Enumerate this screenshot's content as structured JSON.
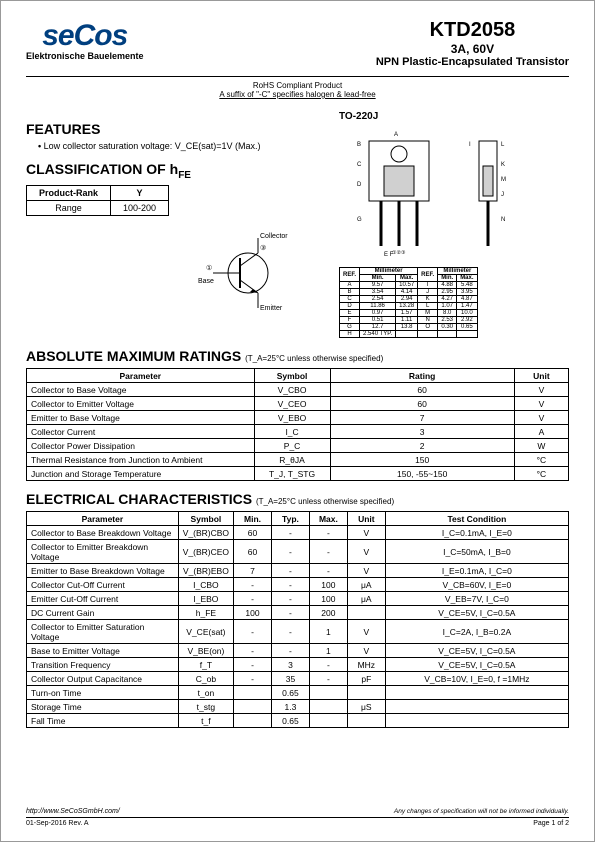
{
  "header": {
    "logo_text": "seCos",
    "logo_subtitle": "Elektronische Bauelemente",
    "part_number": "KTD2058",
    "rating_line": "3A, 60V",
    "description": "NPN Plastic-Encapsulated Transistor"
  },
  "compliance": {
    "line1": "RoHS Compliant Product",
    "line2": "A suffix of \"-C\" specifies halogen & lead-free"
  },
  "features": {
    "title": "FEATURES",
    "items": [
      "Low collector saturation voltage: V_CE(sat)=1V (Max.)"
    ]
  },
  "classification": {
    "title": "CLASSIFICATION OF h",
    "title_sub": "FE",
    "columns": [
      "Product-Rank",
      "Y"
    ],
    "rows": [
      [
        "Range",
        "100-200"
      ]
    ]
  },
  "package": {
    "label": "TO-220J",
    "dim_headers": [
      "REF.",
      "Millimeter",
      "REF.",
      "Millimeter"
    ],
    "dim_sub": [
      "",
      "Min.",
      "Max.",
      "",
      "Min.",
      "Max."
    ],
    "dim_rows": [
      [
        "A",
        "9.57",
        "10.57",
        "I",
        "4.88",
        "5.48"
      ],
      [
        "B",
        "3.54",
        "4.14",
        "J",
        "2.95",
        "3.95"
      ],
      [
        "C",
        "2.54",
        "2.94",
        "K",
        "4.27",
        "4.87"
      ],
      [
        "D",
        "11.86",
        "13.28",
        "L",
        "1.07",
        "1.47"
      ],
      [
        "E",
        "0.97",
        "1.57",
        "M",
        "8.0",
        "10.0"
      ],
      [
        "F",
        "0.51",
        "1.11",
        "N",
        "2.53",
        "2.92"
      ],
      [
        "G",
        "12.7",
        "13.8",
        "O",
        "0.30",
        "0.65"
      ],
      [
        "H",
        "2.540 TYP.",
        "",
        "",
        "",
        ""
      ]
    ]
  },
  "transistor_symbol": {
    "collector": "Collector",
    "base": "Base",
    "emitter": "Emitter",
    "pin1": "①",
    "pin3": "③"
  },
  "abs_max": {
    "title": "ABSOLUTE MAXIMUM RATINGS",
    "note": "(T_A=25°C unless otherwise specified)",
    "columns": [
      "Parameter",
      "Symbol",
      "Rating",
      "Unit"
    ],
    "rows": [
      [
        "Collector to Base Voltage",
        "V_CBO",
        "60",
        "V"
      ],
      [
        "Collector to Emitter Voltage",
        "V_CEO",
        "60",
        "V"
      ],
      [
        "Emitter to Base Voltage",
        "V_EBO",
        "7",
        "V"
      ],
      [
        "Collector Current",
        "I_C",
        "3",
        "A"
      ],
      [
        "Collector Power Dissipation",
        "P_C",
        "2",
        "W"
      ],
      [
        "Thermal Resistance from Junction to Ambient",
        "R_θJA",
        "150",
        "°C"
      ],
      [
        "Junction and Storage Temperature",
        "T_J, T_STG",
        "150, -55~150",
        "°C"
      ]
    ]
  },
  "elec_char": {
    "title": "ELECTRICAL CHARACTERISTICS",
    "note": "(T_A=25°C unless otherwise specified)",
    "columns": [
      "Parameter",
      "Symbol",
      "Min.",
      "Typ.",
      "Max.",
      "Unit",
      "Test Condition"
    ],
    "rows": [
      [
        "Collector to Base Breakdown Voltage",
        "V_(BR)CBO",
        "60",
        "-",
        "-",
        "V",
        "I_C=0.1mA, I_E=0"
      ],
      [
        "Collector to Emitter Breakdown Voltage",
        "V_(BR)CEO",
        "60",
        "-",
        "-",
        "V",
        "I_C=50mA, I_B=0"
      ],
      [
        "Emitter to Base Breakdown Voltage",
        "V_(BR)EBO",
        "7",
        "-",
        "-",
        "V",
        "I_E=0.1mA, I_C=0"
      ],
      [
        "Collector Cut-Off Current",
        "I_CBO",
        "-",
        "-",
        "100",
        "μA",
        "V_CB=60V, I_E=0"
      ],
      [
        "Emitter Cut-Off Current",
        "I_EBO",
        "-",
        "-",
        "100",
        "μA",
        "V_EB=7V, I_C=0"
      ],
      [
        "DC Current Gain",
        "h_FE",
        "100",
        "-",
        "200",
        "",
        "V_CE=5V, I_C=0.5A"
      ],
      [
        "Collector to Emitter Saturation Voltage",
        "V_CE(sat)",
        "-",
        "-",
        "1",
        "V",
        "I_C=2A, I_B=0.2A"
      ],
      [
        "Base to Emitter Voltage",
        "V_BE(on)",
        "-",
        "-",
        "1",
        "V",
        "V_CE=5V, I_C=0.5A"
      ],
      [
        "Transition Frequency",
        "f_T",
        "-",
        "3",
        "-",
        "MHz",
        "V_CE=5V, I_C=0.5A"
      ],
      [
        "Collector Output Capacitance",
        "C_ob",
        "-",
        "35",
        "-",
        "pF",
        "V_CB=10V, I_E=0, f =1MHz"
      ],
      [
        "Turn-on Time",
        "t_on",
        "",
        "0.65",
        "",
        "",
        ""
      ],
      [
        "Storage Time",
        "t_stg",
        "",
        "1.3",
        "",
        "μS",
        ""
      ],
      [
        "Fall Time",
        "t_f",
        "",
        "0.65",
        "",
        "",
        ""
      ]
    ]
  },
  "footer": {
    "url": "http://www.SeCoSGmbH.com/",
    "disclaimer": "Any changes of specification will not be informed individually.",
    "date_rev": "01-Sep-2016 Rev. A",
    "page": "Page 1 of 2"
  },
  "colors": {
    "logo": "#003f7f",
    "border": "#000000",
    "bg": "#ffffff"
  }
}
